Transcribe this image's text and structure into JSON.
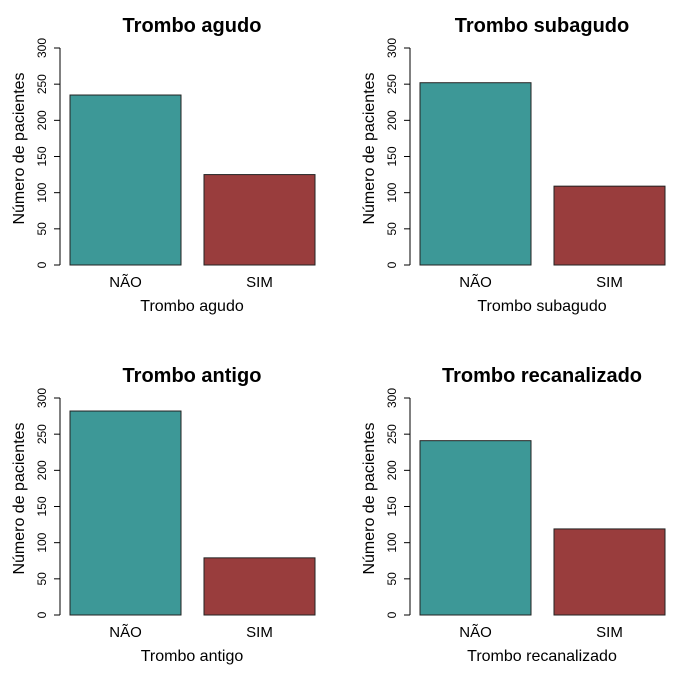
{
  "colors": {
    "nao": "#3d9897",
    "sim": "#993d3d"
  },
  "chart_data": [
    {
      "type": "bar",
      "title": "Trombo agudo",
      "xlabel": "Trombo agudo",
      "ylabel": "Número de pacientes",
      "categories": [
        "NÃO",
        "SIM"
      ],
      "values": [
        235,
        125
      ],
      "ylim": [
        0,
        300
      ],
      "yticks": [
        0,
        50,
        100,
        150,
        200,
        250,
        300
      ]
    },
    {
      "type": "bar",
      "title": "Trombo subagudo",
      "xlabel": "Trombo subagudo",
      "ylabel": "Número de pacientes",
      "categories": [
        "NÃO",
        "SIM"
      ],
      "values": [
        252,
        109
      ],
      "ylim": [
        0,
        300
      ],
      "yticks": [
        0,
        50,
        100,
        150,
        200,
        250,
        300
      ]
    },
    {
      "type": "bar",
      "title": "Trombo antigo",
      "xlabel": "Trombo antigo",
      "ylabel": "Número de pacientes",
      "categories": [
        "NÃO",
        "SIM"
      ],
      "values": [
        282,
        79
      ],
      "ylim": [
        0,
        300
      ],
      "yticks": [
        0,
        50,
        100,
        150,
        200,
        250,
        300
      ]
    },
    {
      "type": "bar",
      "title": "Trombo recanalizado",
      "xlabel": "Trombo recanalizado",
      "ylabel": "Número de pacientes",
      "categories": [
        "NÃO",
        "SIM"
      ],
      "values": [
        241,
        119
      ],
      "ylim": [
        0,
        300
      ],
      "yticks": [
        0,
        50,
        100,
        150,
        200,
        250,
        300
      ]
    }
  ]
}
